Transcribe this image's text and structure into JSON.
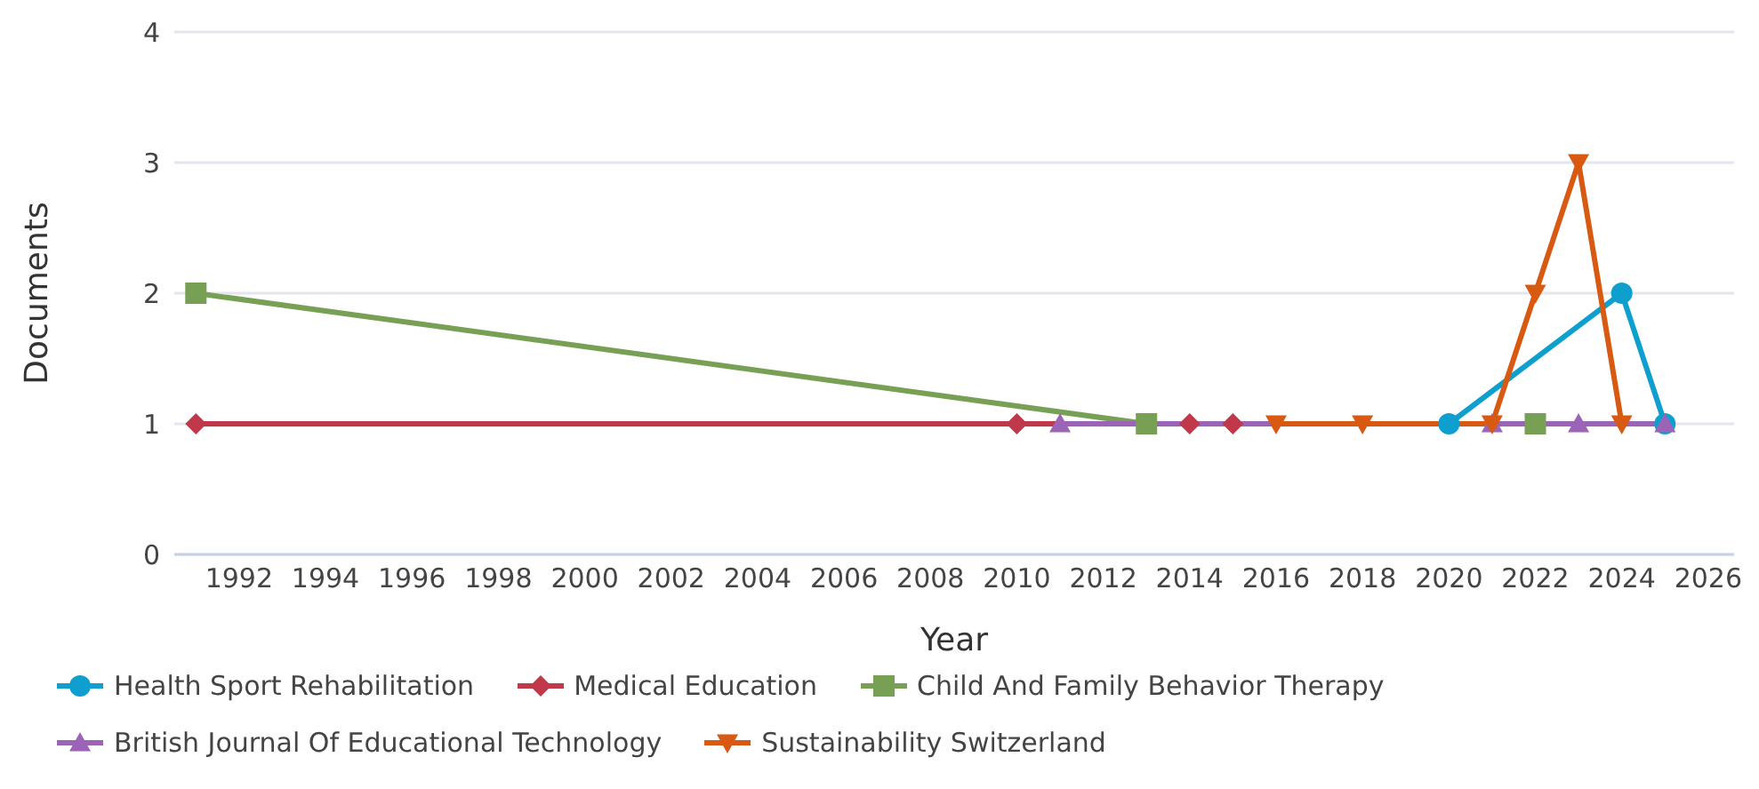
{
  "chart_data": {
    "type": "line",
    "xlabel": "Year",
    "ylabel": "Documents",
    "xlim": [
      1990.5,
      2026.6
    ],
    "xticks": [
      1992,
      1994,
      1996,
      1998,
      2000,
      2002,
      2004,
      2006,
      2008,
      2010,
      2012,
      2014,
      2016,
      2018,
      2020,
      2022,
      2024,
      2026
    ],
    "ylim": [
      0,
      4
    ],
    "yticks": [
      0,
      1,
      2,
      3,
      4
    ],
    "grid": "y",
    "legend": "bottom",
    "series": [
      {
        "name": "Health Sport Rehabilitation",
        "color": "#0e9fcf",
        "marker": "circle",
        "x": [
          2020,
          2024,
          2025
        ],
        "values": [
          1,
          2,
          1
        ]
      },
      {
        "name": "Medical Education",
        "color": "#c0394b",
        "marker": "diamond",
        "x": [
          1991,
          2010,
          2014,
          2015
        ],
        "values": [
          1,
          1,
          1,
          1
        ]
      },
      {
        "name": "Child And Family Behavior Therapy",
        "color": "#77a054",
        "marker": "square",
        "x": [
          1991,
          2013,
          2022
        ],
        "values": [
          2,
          1,
          1
        ]
      },
      {
        "name": "British Journal Of Educational Technology",
        "color": "#9b64b6",
        "marker": "triangle",
        "x": [
          2011,
          2021,
          2023,
          2025
        ],
        "values": [
          1,
          1,
          1,
          1
        ]
      },
      {
        "name": "Sustainability Switzerland",
        "color": "#d85a12",
        "marker": "triangle-down",
        "x": [
          2016,
          2018,
          2021,
          2022,
          2023,
          2024
        ],
        "values": [
          1,
          1,
          1,
          2,
          3,
          1
        ]
      }
    ]
  }
}
